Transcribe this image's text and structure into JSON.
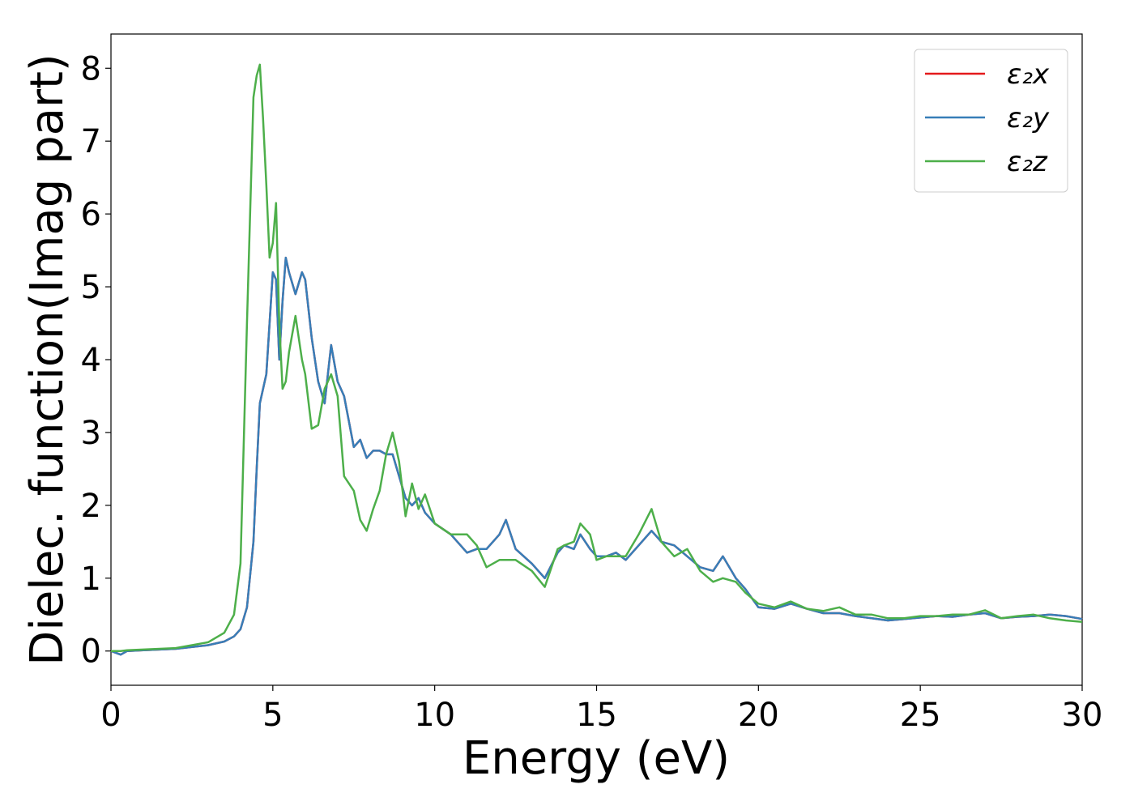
{
  "chart_data": {
    "type": "line",
    "xlabel": "Energy (eV)",
    "ylabel": "Dielec. function(Imag part)",
    "x": [
      0,
      0.3,
      0.5,
      1,
      2,
      3,
      3.5,
      3.8,
      4,
      4.2,
      4.4,
      4.5,
      4.6,
      4.7,
      4.8,
      4.9,
      5.0,
      5.1,
      5.2,
      5.3,
      5.4,
      5.5,
      5.7,
      5.9,
      6.0,
      6.2,
      6.4,
      6.6,
      6.8,
      7.0,
      7.2,
      7.5,
      7.7,
      7.9,
      8.1,
      8.3,
      8.5,
      8.7,
      8.9,
      9.1,
      9.3,
      9.5,
      9.7,
      10,
      10.5,
      11,
      11.3,
      11.6,
      12,
      12.2,
      12.5,
      13,
      13.4,
      13.8,
      14,
      14.3,
      14.5,
      14.8,
      15,
      15.3,
      15.6,
      15.9,
      16.3,
      16.7,
      17,
      17.4,
      17.8,
      18.2,
      18.6,
      18.9,
      19.3,
      19.6,
      20,
      20.5,
      21,
      21.5,
      22,
      22.5,
      23,
      23.5,
      24,
      24.5,
      25,
      25.5,
      26,
      26.5,
      27,
      27.5,
      28,
      28.5,
      29,
      29.5,
      30
    ],
    "series": [
      {
        "name": "ε₂x",
        "color": "#e41a1c",
        "values": [
          0,
          -0.05,
          0,
          0.01,
          0.03,
          0.08,
          0.13,
          0.2,
          0.3,
          0.6,
          1.5,
          2.5,
          3.4,
          3.6,
          3.8,
          4.5,
          5.2,
          5.1,
          4.0,
          4.8,
          5.4,
          5.2,
          4.9,
          5.2,
          5.1,
          4.3,
          3.7,
          3.4,
          4.2,
          3.7,
          3.5,
          2.8,
          2.9,
          2.65,
          2.75,
          2.75,
          2.7,
          2.7,
          2.4,
          2.1,
          2.0,
          2.1,
          1.9,
          1.75,
          1.6,
          1.35,
          1.4,
          1.4,
          1.6,
          1.8,
          1.4,
          1.2,
          1.0,
          1.35,
          1.45,
          1.4,
          1.6,
          1.4,
          1.3,
          1.3,
          1.35,
          1.25,
          1.45,
          1.65,
          1.5,
          1.45,
          1.3,
          1.15,
          1.1,
          1.3,
          1.0,
          0.85,
          0.6,
          0.58,
          0.65,
          0.58,
          0.52,
          0.52,
          0.48,
          0.45,
          0.42,
          0.44,
          0.46,
          0.48,
          0.47,
          0.5,
          0.52,
          0.45,
          0.47,
          0.48,
          0.5,
          0.48,
          0.44
        ]
      },
      {
        "name": "ε₂y",
        "color": "#377eb8",
        "values": [
          0,
          -0.05,
          0,
          0.01,
          0.03,
          0.08,
          0.13,
          0.2,
          0.3,
          0.6,
          1.5,
          2.5,
          3.4,
          3.6,
          3.8,
          4.5,
          5.2,
          5.1,
          4.0,
          4.8,
          5.4,
          5.2,
          4.9,
          5.2,
          5.1,
          4.3,
          3.7,
          3.4,
          4.2,
          3.7,
          3.5,
          2.8,
          2.9,
          2.65,
          2.75,
          2.75,
          2.7,
          2.7,
          2.4,
          2.1,
          2.0,
          2.1,
          1.9,
          1.75,
          1.6,
          1.35,
          1.4,
          1.4,
          1.6,
          1.8,
          1.4,
          1.2,
          1.0,
          1.35,
          1.45,
          1.4,
          1.6,
          1.4,
          1.3,
          1.3,
          1.35,
          1.25,
          1.45,
          1.65,
          1.5,
          1.45,
          1.3,
          1.15,
          1.1,
          1.3,
          1.0,
          0.85,
          0.6,
          0.58,
          0.65,
          0.58,
          0.52,
          0.52,
          0.48,
          0.45,
          0.42,
          0.44,
          0.46,
          0.48,
          0.47,
          0.5,
          0.52,
          0.45,
          0.47,
          0.48,
          0.5,
          0.48,
          0.44
        ]
      },
      {
        "name": "ε₂z",
        "color": "#4daf4a",
        "values": [
          0,
          0,
          0.01,
          0.02,
          0.04,
          0.12,
          0.25,
          0.5,
          1.2,
          4.5,
          7.6,
          7.9,
          8.05,
          7.3,
          6.4,
          5.4,
          5.6,
          6.15,
          4.5,
          3.6,
          3.7,
          4.1,
          4.6,
          4.0,
          3.8,
          3.05,
          3.1,
          3.6,
          3.8,
          3.5,
          2.4,
          2.2,
          1.8,
          1.65,
          1.95,
          2.2,
          2.7,
          3.0,
          2.6,
          1.85,
          2.3,
          1.95,
          2.15,
          1.75,
          1.6,
          1.6,
          1.45,
          1.15,
          1.25,
          1.25,
          1.25,
          1.1,
          0.88,
          1.4,
          1.45,
          1.5,
          1.75,
          1.6,
          1.25,
          1.3,
          1.3,
          1.3,
          1.6,
          1.95,
          1.5,
          1.3,
          1.4,
          1.1,
          0.95,
          1.0,
          0.95,
          0.8,
          0.65,
          0.6,
          0.68,
          0.58,
          0.55,
          0.6,
          0.5,
          0.5,
          0.45,
          0.45,
          0.48,
          0.48,
          0.5,
          0.5,
          0.56,
          0.45,
          0.48,
          0.5,
          0.45,
          0.42,
          0.4
        ]
      }
    ],
    "xlim": [
      0,
      30
    ],
    "xticks": [
      0,
      5,
      10,
      15,
      20,
      25,
      30
    ],
    "ylim": [
      -0.47,
      8.47
    ],
    "yticks": [
      0,
      1,
      2,
      3,
      4,
      5,
      6,
      7,
      8
    ],
    "legend": "upper right"
  }
}
